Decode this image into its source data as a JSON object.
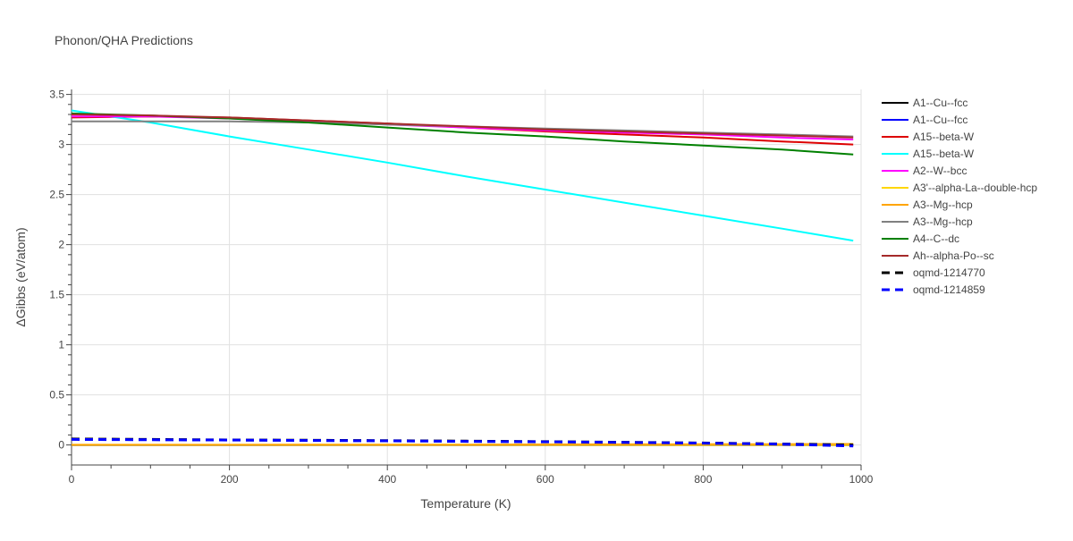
{
  "chart_data": {
    "type": "line",
    "title": "Phonon/QHA Predictions",
    "xlabel": "Temperature (K)",
    "ylabel": "ΔGibbs (eV/atom)",
    "xlim": [
      0,
      1000
    ],
    "ylim": [
      -0.2,
      3.55
    ],
    "xticks": [
      0,
      200,
      400,
      600,
      800,
      1000
    ],
    "xtick_labels": [
      "0",
      "200",
      "400",
      "600",
      "800",
      "1000"
    ],
    "yticks": [
      0,
      0.5,
      1,
      1.5,
      2,
      2.5,
      3,
      3.5
    ],
    "ytick_labels": [
      "0",
      "0.5",
      "1",
      "1.5",
      "2",
      "2.5",
      "3",
      "3.5"
    ],
    "grid": true,
    "legend_position": "right",
    "series": [
      {
        "name": "A1--Cu--fcc",
        "color": "#000000",
        "dash": "solid",
        "x": [
          0,
          100,
          200,
          300,
          400,
          500,
          600,
          700,
          800,
          900,
          990
        ],
        "y": [
          0,
          0,
          0,
          0,
          0,
          0,
          0,
          0,
          0,
          0,
          0
        ]
      },
      {
        "name": "A1--Cu--fcc",
        "color": "#0000ff",
        "dash": "solid",
        "x": [
          0,
          100,
          200,
          300,
          400,
          500,
          600,
          700,
          800,
          900,
          990
        ],
        "y": [
          0,
          0,
          0,
          0,
          0,
          0,
          0,
          0,
          0,
          0,
          0
        ]
      },
      {
        "name": "A15--beta-W",
        "color": "#dd0000",
        "dash": "solid",
        "x": [
          0,
          100,
          200,
          300,
          400,
          500,
          600,
          700,
          800,
          900,
          990
        ],
        "y": [
          3.27,
          3.28,
          3.27,
          3.24,
          3.21,
          3.17,
          3.13,
          3.1,
          3.07,
          3.03,
          3.0
        ]
      },
      {
        "name": "A15--beta-W",
        "color": "#00ffff",
        "dash": "solid",
        "x": [
          0,
          100,
          200,
          300,
          400,
          500,
          600,
          700,
          800,
          900,
          990
        ],
        "y": [
          3.34,
          3.22,
          3.08,
          2.95,
          2.82,
          2.68,
          2.55,
          2.42,
          2.29,
          2.16,
          2.04
        ]
      },
      {
        "name": "A2--W--bcc",
        "color": "#ff00ff",
        "dash": "solid",
        "x": [
          0,
          100,
          200,
          300,
          400,
          500,
          600,
          700,
          800,
          900,
          990
        ],
        "y": [
          3.28,
          3.28,
          3.26,
          3.23,
          3.2,
          3.17,
          3.14,
          3.12,
          3.1,
          3.07,
          3.05
        ]
      },
      {
        "name": "A3'--alpha-La--double-hcp",
        "color": "#ffd700",
        "dash": "solid",
        "x": [
          0,
          100,
          200,
          300,
          400,
          500,
          600,
          700,
          800,
          900,
          990
        ],
        "y": [
          0,
          0,
          0,
          0,
          0,
          0,
          0,
          0,
          0,
          0,
          0
        ]
      },
      {
        "name": "A3--Mg--hcp",
        "color": "#ffa500",
        "dash": "solid",
        "x": [
          0,
          100,
          200,
          300,
          400,
          500,
          600,
          700,
          800,
          900,
          990
        ],
        "y": [
          0.002,
          0.002,
          0.002,
          0.003,
          0.003,
          0.004,
          0.005,
          0.006,
          0.007,
          0.008,
          0.01
        ]
      },
      {
        "name": "A3--Mg--hcp",
        "color": "#808080",
        "dash": "solid",
        "x": [
          0,
          100,
          200,
          300,
          400,
          500,
          600,
          700,
          800,
          900,
          990
        ],
        "y": [
          3.23,
          3.23,
          3.23,
          3.22,
          3.2,
          3.18,
          3.16,
          3.14,
          3.12,
          3.1,
          3.08
        ]
      },
      {
        "name": "A4--C--dc",
        "color": "#008000",
        "dash": "solid",
        "x": [
          0,
          100,
          200,
          300,
          400,
          500,
          600,
          700,
          800,
          900,
          990
        ],
        "y": [
          3.31,
          3.29,
          3.26,
          3.22,
          3.17,
          3.12,
          3.08,
          3.03,
          2.99,
          2.95,
          2.9
        ]
      },
      {
        "name": "Ah--alpha-Po--sc",
        "color": "#a52a2a",
        "dash": "solid",
        "x": [
          0,
          100,
          200,
          300,
          400,
          500,
          600,
          700,
          800,
          900,
          990
        ],
        "y": [
          3.3,
          3.29,
          3.27,
          3.24,
          3.21,
          3.18,
          3.15,
          3.13,
          3.11,
          3.09,
          3.07
        ]
      },
      {
        "name": "oqmd-1214770",
        "color": "#000000",
        "dash": "dash",
        "x": [
          0,
          100,
          200,
          300,
          400,
          500,
          600,
          700,
          800,
          900,
          990
        ],
        "y": [
          0.06,
          0.055,
          0.05,
          0.047,
          0.043,
          0.038,
          0.033,
          0.027,
          0.02,
          0.01,
          0.0
        ]
      },
      {
        "name": "oqmd-1214859",
        "color": "#0000ff",
        "dash": "dash",
        "x": [
          0,
          100,
          200,
          300,
          400,
          500,
          600,
          700,
          800,
          900,
          990
        ],
        "y": [
          0.055,
          0.052,
          0.049,
          0.045,
          0.041,
          0.036,
          0.031,
          0.025,
          0.018,
          0.008,
          -0.01
        ]
      }
    ]
  }
}
